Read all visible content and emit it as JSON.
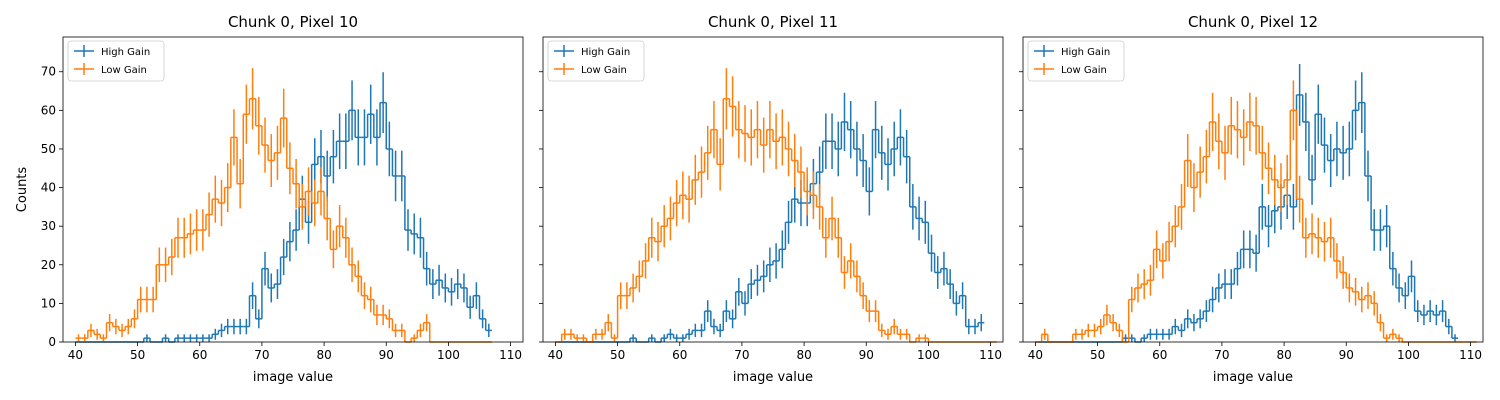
{
  "chart_data": {
    "type": "histogram",
    "shared": {
      "xlabel": "image value",
      "ylabel": "Counts",
      "xlim": [
        38,
        112
      ],
      "ylim": [
        0,
        79
      ],
      "xticks": [
        40,
        50,
        60,
        70,
        80,
        90,
        100,
        110
      ],
      "yticks": [
        0,
        10,
        20,
        30,
        40,
        50,
        60,
        70
      ],
      "bin_start": 40,
      "bin_width": 1,
      "legend_position": "upper-left",
      "colors": {
        "High Gain": "#1f77b4",
        "Low Gain": "#ff7f0e"
      }
    },
    "panels": [
      {
        "title": "Chunk 0, Pixel 10",
        "series": [
          {
            "name": "High Gain",
            "values": [
              0,
              0,
              0,
              0,
              0,
              0,
              0,
              0,
              0,
              0,
              0,
              1,
              0,
              0,
              1,
              0,
              1,
              1,
              1,
              1,
              1,
              1,
              2,
              3,
              4,
              4,
              4,
              4,
              12,
              6,
              19,
              14,
              15,
              22,
              26,
              29,
              37,
              31,
              46,
              48,
              43,
              48,
              52,
              52,
              60,
              53,
              53,
              59,
              53,
              62,
              50,
              43,
              43,
              29,
              28,
              27,
              19,
              15,
              16,
              14,
              13,
              15,
              14,
              9,
              12,
              6,
              3
            ]
          },
          {
            "name": "Low Gain",
            "values": [
              1,
              1,
              3,
              2,
              1,
              5,
              4,
              3,
              4,
              6,
              11,
              11,
              11,
              20,
              20,
              22,
              27,
              27,
              28,
              29,
              29,
              33,
              37,
              36,
              40,
              53,
              41,
              59,
              63,
              56,
              51,
              47,
              49,
              58,
              45,
              41,
              35,
              39,
              36,
              39,
              32,
              24,
              30,
              27,
              20,
              17,
              12,
              11,
              7,
              7,
              6,
              3,
              3,
              0,
              1,
              3,
              5,
              0,
              0,
              0,
              0,
              0,
              0,
              0,
              0,
              0,
              0
            ]
          }
        ]
      },
      {
        "title": "Chunk 0, Pixel 11",
        "series": [
          {
            "name": "High Gain",
            "values": [
              0,
              0,
              0,
              0,
              0,
              0,
              0,
              0,
              0,
              0,
              0,
              0,
              1,
              0,
              0,
              1,
              0,
              1,
              2,
              1,
              1,
              2,
              3,
              3,
              8,
              4,
              3,
              8,
              6,
              13,
              10,
              15,
              16,
              17,
              20,
              21,
              24,
              31,
              37,
              36,
              36,
              41,
              44,
              52,
              52,
              50,
              57,
              55,
              50,
              47,
              39,
              55,
              49,
              46,
              50,
              53,
              48,
              35,
              32,
              31,
              23,
              18,
              19,
              15,
              10,
              12,
              4,
              4,
              5
            ]
          },
          {
            "name": "Low Gain",
            "values": [
              0,
              2,
              2,
              1,
              1,
              0,
              2,
              2,
              5,
              1,
              12,
              12,
              14,
              17,
              21,
              27,
              26,
              30,
              32,
              36,
              38,
              37,
              42,
              44,
              49,
              55,
              46,
              63,
              61,
              55,
              54,
              53,
              55,
              51,
              55,
              52,
              53,
              50,
              47,
              44,
              39,
              38,
              35,
              27,
              32,
              27,
              18,
              21,
              17,
              12,
              8,
              8,
              3,
              2,
              4,
              2,
              2,
              0,
              1,
              1,
              0,
              0,
              0,
              0,
              0,
              0,
              0,
              0,
              0,
              0,
              0
            ]
          }
        ]
      },
      {
        "title": "Chunk 0, Pixel 12",
        "series": [
          {
            "name": "High Gain",
            "values": [
              0,
              0,
              0,
              0,
              0,
              0,
              0,
              0,
              0,
              0,
              0,
              0,
              0,
              0,
              1,
              1,
              0,
              1,
              2,
              2,
              2,
              2,
              4,
              3,
              6,
              5,
              6,
              8,
              11,
              14,
              15,
              15,
              19,
              24,
              24,
              23,
              35,
              30,
              34,
              35,
              38,
              35,
              64,
              57,
              42,
              59,
              51,
              47,
              50,
              49,
              50,
              60,
              62,
              43,
              29,
              29,
              30,
              19,
              14,
              12,
              17,
              8,
              7,
              8,
              7,
              8,
              4,
              1
            ]
          },
          {
            "name": "Low Gain",
            "values": [
              0,
              2,
              0,
              0,
              0,
              0,
              2,
              2,
              3,
              3,
              4,
              7,
              5,
              3,
              0,
              11,
              14,
              15,
              16,
              24,
              21,
              26,
              30,
              35,
              47,
              40,
              44,
              48,
              57,
              52,
              49,
              56,
              55,
              53,
              57,
              56,
              49,
              45,
              42,
              40,
              42,
              60,
              37,
              27,
              28,
              27,
              26,
              27,
              21,
              18,
              14,
              13,
              11,
              12,
              10,
              5,
              1,
              2,
              1,
              0,
              0,
              0,
              0,
              0,
              0,
              0,
              0,
              0,
              0,
              0,
              0
            ]
          }
        ]
      }
    ]
  }
}
